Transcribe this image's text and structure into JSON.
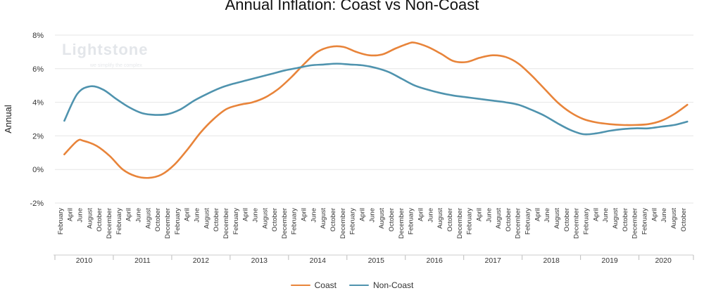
{
  "logo": {
    "name": "Lightstone",
    "tagline": "we simplify the complex"
  },
  "chart_data": {
    "type": "line",
    "title": "Annual Inflation: Coast vs Non-Coast",
    "ylabel": "Annual",
    "ylim": [
      -2,
      8
    ],
    "yticks": [
      -2,
      0,
      2,
      4,
      6,
      8
    ],
    "ytick_labels": [
      "-2%",
      "0%",
      "2%",
      "4%",
      "6%",
      "8%"
    ],
    "month_labels": [
      "February",
      "April",
      "June",
      "August",
      "October",
      "December"
    ],
    "years": [
      "2010",
      "2011",
      "2012",
      "2013",
      "2014",
      "2015",
      "2016",
      "2017",
      "2018",
      "2019",
      "2020"
    ],
    "last_year_months": [
      "February",
      "April",
      "June",
      "August",
      "October"
    ],
    "grid": true,
    "legend_position": "bottom",
    "series": [
      {
        "name": "Coast",
        "color": "#e8843a",
        "points": [
          [
            1,
            0.9
          ],
          [
            3,
            1.7
          ],
          [
            4,
            1.7
          ],
          [
            6,
            1.4
          ],
          [
            8,
            0.8
          ],
          [
            10,
            0.0
          ],
          [
            12,
            -0.4
          ],
          [
            14,
            -0.5
          ],
          [
            16,
            -0.3
          ],
          [
            18,
            0.3
          ],
          [
            20,
            1.2
          ],
          [
            22,
            2.2
          ],
          [
            24,
            3.0
          ],
          [
            26,
            3.6
          ],
          [
            28,
            3.85
          ],
          [
            30,
            4.0
          ],
          [
            32,
            4.3
          ],
          [
            34,
            4.8
          ],
          [
            36,
            5.5
          ],
          [
            38,
            6.3
          ],
          [
            40,
            7.0
          ],
          [
            42,
            7.3
          ],
          [
            44,
            7.3
          ],
          [
            46,
            7.0
          ],
          [
            48,
            6.8
          ],
          [
            50,
            6.85
          ],
          [
            52,
            7.2
          ],
          [
            54,
            7.5
          ],
          [
            55,
            7.55
          ],
          [
            57,
            7.3
          ],
          [
            59,
            6.9
          ],
          [
            61,
            6.45
          ],
          [
            63,
            6.4
          ],
          [
            65,
            6.65
          ],
          [
            67,
            6.8
          ],
          [
            69,
            6.7
          ],
          [
            71,
            6.3
          ],
          [
            73,
            5.6
          ],
          [
            75,
            4.8
          ],
          [
            77,
            4.0
          ],
          [
            79,
            3.4
          ],
          [
            81,
            3.0
          ],
          [
            83,
            2.8
          ],
          [
            85,
            2.7
          ],
          [
            87,
            2.65
          ],
          [
            89,
            2.65
          ],
          [
            91,
            2.7
          ],
          [
            93,
            2.9
          ],
          [
            95,
            3.3
          ],
          [
            97,
            3.85
          ]
        ]
      },
      {
        "name": "Non-Coast",
        "color": "#4f93ae",
        "points": [
          [
            1,
            2.9
          ],
          [
            3,
            4.5
          ],
          [
            5,
            4.95
          ],
          [
            7,
            4.75
          ],
          [
            9,
            4.2
          ],
          [
            11,
            3.7
          ],
          [
            13,
            3.35
          ],
          [
            15,
            3.25
          ],
          [
            17,
            3.3
          ],
          [
            19,
            3.6
          ],
          [
            21,
            4.1
          ],
          [
            23,
            4.5
          ],
          [
            25,
            4.85
          ],
          [
            27,
            5.1
          ],
          [
            29,
            5.3
          ],
          [
            31,
            5.5
          ],
          [
            33,
            5.7
          ],
          [
            35,
            5.9
          ],
          [
            37,
            6.05
          ],
          [
            39,
            6.2
          ],
          [
            41,
            6.25
          ],
          [
            43,
            6.3
          ],
          [
            45,
            6.25
          ],
          [
            47,
            6.2
          ],
          [
            49,
            6.05
          ],
          [
            51,
            5.8
          ],
          [
            53,
            5.4
          ],
          [
            55,
            5.0
          ],
          [
            57,
            4.75
          ],
          [
            59,
            4.55
          ],
          [
            61,
            4.4
          ],
          [
            63,
            4.3
          ],
          [
            65,
            4.2
          ],
          [
            67,
            4.1
          ],
          [
            69,
            4.0
          ],
          [
            71,
            3.85
          ],
          [
            73,
            3.55
          ],
          [
            75,
            3.2
          ],
          [
            77,
            2.75
          ],
          [
            79,
            2.35
          ],
          [
            81,
            2.1
          ],
          [
            83,
            2.15
          ],
          [
            85,
            2.3
          ],
          [
            87,
            2.4
          ],
          [
            89,
            2.45
          ],
          [
            91,
            2.45
          ],
          [
            93,
            2.55
          ],
          [
            95,
            2.65
          ],
          [
            97,
            2.85
          ]
        ]
      }
    ]
  }
}
